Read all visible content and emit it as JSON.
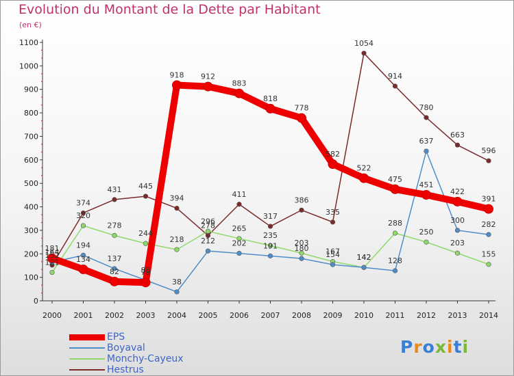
{
  "title": "Evolution du Montant de la Dette par Habitant",
  "subtitle": "(en €)",
  "logo": {
    "text": "Proxiti",
    "colors": [
      "#3a7fd4",
      "#e88a1c",
      "#3a7fd4",
      "#7ab83a",
      "#e88a1c",
      "#3a7fd4",
      "#7ab83a"
    ]
  },
  "chart_data": {
    "type": "line",
    "x": [
      "2000",
      "2001",
      "2002",
      "2003",
      "2004",
      "2005",
      "2006",
      "2007",
      "2008",
      "2009",
      "2010",
      "2011",
      "2012",
      "2013",
      "2014"
    ],
    "yticks": [
      0,
      100,
      200,
      300,
      400,
      500,
      600,
      700,
      800,
      900,
      1000,
      1100
    ],
    "ylim": [
      0,
      1100
    ],
    "grid": false,
    "legend_position": "bottom-left",
    "series": [
      {
        "name": "EPS",
        "color": "#ee0000",
        "values": [
          181,
          134,
          82,
          78,
          918,
          912,
          883,
          818,
          778,
          582,
          522,
          475,
          451,
          422,
          391
        ],
        "labels": [
          "181",
          "134",
          "82",
          "78",
          "918",
          "912",
          "883",
          "818",
          "778",
          "582",
          "522",
          "475",
          "451",
          "422",
          "391"
        ]
      },
      {
        "name": "Boyaval",
        "color": "#4f8dc9",
        "values": [
          164,
          194,
          137,
          88,
          38,
          212,
          202,
          191,
          180,
          154,
          142,
          128,
          637,
          300,
          282
        ],
        "labels": [
          "164",
          "194",
          "137",
          "88",
          "38",
          "212",
          "202",
          "191",
          "180",
          "154",
          "142",
          "128",
          "637",
          "300",
          "282"
        ]
      },
      {
        "name": "Monchy-Cayeux",
        "color": "#8fd96a",
        "values": [
          121,
          320,
          278,
          244,
          218,
          296,
          265,
          235,
          203,
          167,
          142,
          288,
          250,
          203,
          155
        ],
        "labels": [
          "121",
          "320",
          "278",
          "244",
          "218",
          "296",
          "265",
          "235",
          "203",
          "167",
          "142",
          "288",
          "250",
          "203",
          "155"
        ]
      },
      {
        "name": "Hestrus",
        "color": "#7a2a2a",
        "values": [
          152,
          374,
          431,
          445,
          394,
          278,
          411,
          317,
          386,
          335,
          1054,
          914,
          780,
          663,
          596
        ],
        "labels": [
          "152",
          "374",
          "431",
          "445",
          "394",
          "278",
          "411",
          "317",
          "386",
          "335",
          "1054",
          "914",
          "780",
          "663",
          "596"
        ]
      }
    ]
  }
}
